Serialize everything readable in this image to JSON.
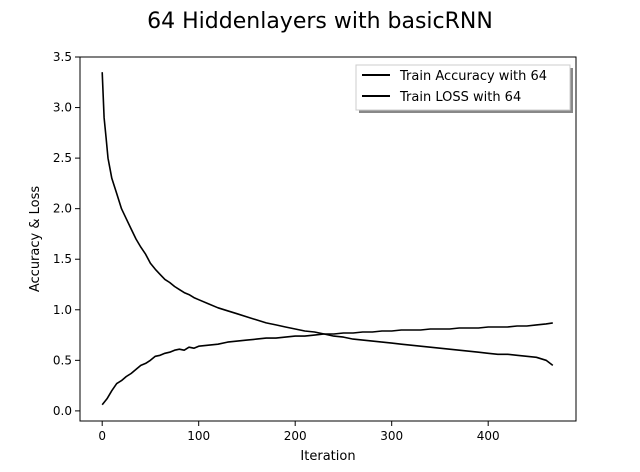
{
  "chart_data": {
    "type": "line",
    "title": "64 Hiddenlayers with basicRNN",
    "xlabel": "Iteration",
    "ylabel": "Accuracy & Loss",
    "xlim": [
      -23,
      491
    ],
    "ylim": [
      -0.1,
      3.5
    ],
    "xticks": [
      0,
      100,
      200,
      300,
      400
    ],
    "yticks": [
      "0.0",
      "0.5",
      "1.0",
      "1.5",
      "2.0",
      "2.5",
      "3.0",
      "3.5"
    ],
    "legend_position": "top-right",
    "line_color": "#000000",
    "series": [
      {
        "name": "Train Accuracy with 64",
        "x": [
          0,
          5,
          10,
          15,
          20,
          25,
          30,
          35,
          40,
          45,
          50,
          55,
          60,
          65,
          70,
          75,
          80,
          85,
          90,
          95,
          100,
          110,
          120,
          130,
          140,
          150,
          160,
          170,
          180,
          190,
          200,
          210,
          220,
          230,
          240,
          250,
          260,
          270,
          280,
          290,
          300,
          310,
          320,
          330,
          340,
          350,
          360,
          370,
          380,
          390,
          400,
          410,
          420,
          430,
          440,
          450,
          460,
          467
        ],
        "values": [
          0.06,
          0.12,
          0.2,
          0.27,
          0.3,
          0.34,
          0.37,
          0.41,
          0.45,
          0.47,
          0.5,
          0.54,
          0.55,
          0.57,
          0.58,
          0.6,
          0.61,
          0.6,
          0.63,
          0.62,
          0.64,
          0.65,
          0.66,
          0.68,
          0.69,
          0.7,
          0.71,
          0.72,
          0.72,
          0.73,
          0.74,
          0.74,
          0.75,
          0.76,
          0.76,
          0.77,
          0.77,
          0.78,
          0.78,
          0.79,
          0.79,
          0.8,
          0.8,
          0.8,
          0.81,
          0.81,
          0.81,
          0.82,
          0.82,
          0.82,
          0.83,
          0.83,
          0.83,
          0.84,
          0.84,
          0.85,
          0.86,
          0.87
        ]
      },
      {
        "name": "Train LOSS with 64",
        "x": [
          0,
          2,
          4,
          6,
          8,
          10,
          15,
          20,
          25,
          30,
          35,
          40,
          45,
          50,
          55,
          60,
          65,
          70,
          75,
          80,
          85,
          90,
          95,
          100,
          110,
          120,
          130,
          140,
          150,
          160,
          170,
          180,
          190,
          200,
          210,
          220,
          230,
          240,
          250,
          260,
          270,
          280,
          290,
          300,
          310,
          320,
          330,
          340,
          350,
          360,
          370,
          380,
          390,
          400,
          410,
          420,
          430,
          440,
          450,
          460,
          467
        ],
        "values": [
          3.35,
          2.9,
          2.7,
          2.5,
          2.4,
          2.3,
          2.15,
          2.0,
          1.9,
          1.8,
          1.7,
          1.62,
          1.55,
          1.46,
          1.4,
          1.35,
          1.3,
          1.27,
          1.23,
          1.2,
          1.17,
          1.15,
          1.12,
          1.1,
          1.06,
          1.02,
          0.99,
          0.96,
          0.93,
          0.9,
          0.87,
          0.85,
          0.83,
          0.81,
          0.79,
          0.78,
          0.76,
          0.74,
          0.73,
          0.71,
          0.7,
          0.69,
          0.68,
          0.67,
          0.66,
          0.65,
          0.64,
          0.63,
          0.62,
          0.61,
          0.6,
          0.59,
          0.58,
          0.57,
          0.56,
          0.56,
          0.55,
          0.54,
          0.53,
          0.5,
          0.45
        ]
      }
    ]
  }
}
